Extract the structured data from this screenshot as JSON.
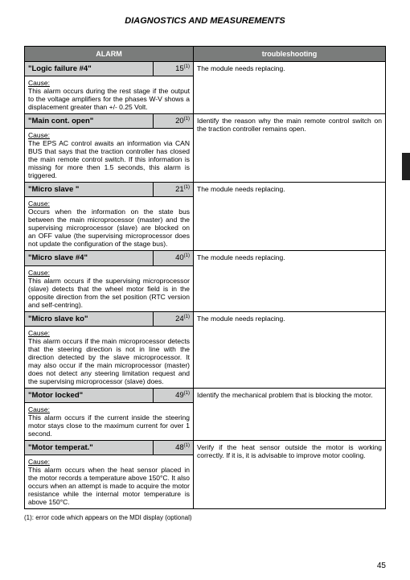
{
  "title": "DIAGNOSTICS AND MEASUREMENTS",
  "columns": {
    "alarm": "ALARM",
    "trouble": "troubleshooting"
  },
  "cause_label": "Cause:",
  "alarms": [
    {
      "name": "\"Logic failure #4\"",
      "code": "15",
      "cause": "This alarm occurs during the rest stage if the output to the voltage amplifiers for the phases W-V shows a displacement greater than +/- 0.25 Volt.",
      "trouble": "The module needs replacing."
    },
    {
      "name": "\"Main cont. open\"",
      "code": "20",
      "cause": "The EPS AC control awaits an information via CAN BUS that says that the traction controller has closed the main remote control switch. If this information is missing for more then 1.5 seconds, this alarm is triggered.",
      "trouble": "Identify the reason why the main remote control switch on the traction controller remains open."
    },
    {
      "name": "\"Micro slave \"",
      "code": "21",
      "cause": "Occurs when the information on the state bus between the main microprocessor (master) and the supervising microprocessor (slave) are blocked on an OFF value (the supervising microprocessor does not update the configuration of the stage bus).",
      "trouble": "The module needs replacing."
    },
    {
      "name": "\"Micro slave #4\"",
      "code": "40",
      "cause": "This alarm occurs if the supervising microprocessor (slave) detects that the wheel motor field is in the opposite direction from the set position (RTC version and self-centring).",
      "trouble": "The module needs replacing."
    },
    {
      "name": "\"Micro slave ko\"",
      "code": "24",
      "cause": "This alarm occurs if the main microprocessor detects that the steering direction is not in line with the direction detected by the slave microprocessor. It may also occur if the main microprocessor (master) does not detect any steering limitation request and the supervising microprocessor (slave) does.",
      "trouble": "The module needs replacing."
    },
    {
      "name": "\"Motor locked\"",
      "code": "49",
      "cause": "This alarm occurs if the current inside the steering motor stays close to the maximum current for over 1 second.",
      "trouble": "Identify the mechanical problem that is blocking the motor."
    },
    {
      "name": "\"Motor temperat.\"",
      "code": "48",
      "cause": "This alarm occurs when the heat sensor placed in the motor records a temperature above 150°C. It also occurs when an attempt is made to acquire the motor resistance while the internal motor temperature is above 150°C.",
      "trouble": "Verify if the heat sensor outside the motor is working correctly. If it is, it is advisable to improve motor cooling."
    }
  ],
  "footnote": "(1): error code which appears on the MDI display (optional)",
  "page_number": "45",
  "footnote_marker": "(1)"
}
